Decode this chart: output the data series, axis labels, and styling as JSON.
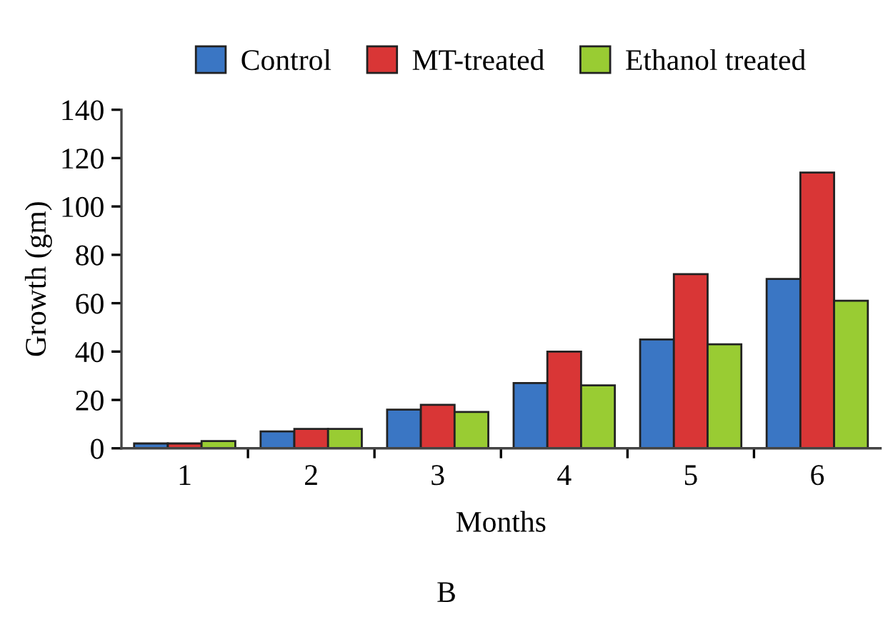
{
  "chart_data": {
    "type": "bar",
    "xlabel": "Months",
    "ylabel": "Growth (gm)",
    "annotations": [
      "B"
    ],
    "categories": [
      "1",
      "2",
      "3",
      "4",
      "5",
      "6"
    ],
    "series": [
      {
        "name": "Control",
        "color": "#3a76c4",
        "values": [
          2,
          7,
          16,
          27,
          45,
          70
        ]
      },
      {
        "name": "MT-treated",
        "color": "#d93636",
        "values": [
          2,
          8,
          18,
          40,
          72,
          114
        ]
      },
      {
        "name": "Ethanol treated",
        "color": "#99cc33",
        "values": [
          3,
          8,
          15,
          26,
          43,
          61
        ]
      }
    ],
    "ylim": [
      0,
      140
    ],
    "yticks": [
      0,
      20,
      40,
      60,
      80,
      100,
      120,
      140
    ],
    "grid": false,
    "legend": "top"
  }
}
